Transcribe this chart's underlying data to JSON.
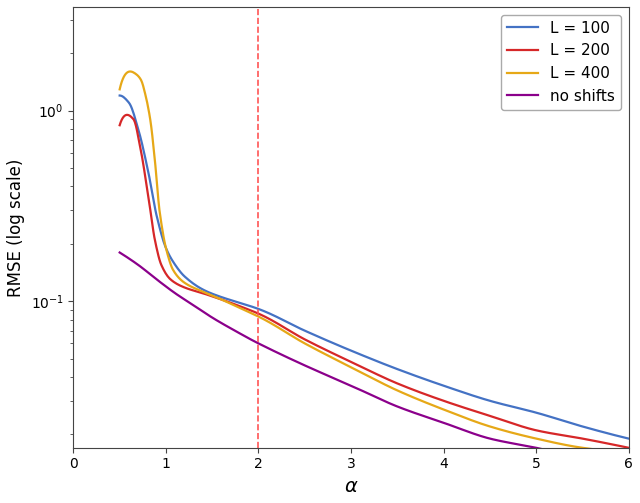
{
  "title": "",
  "xlabel": "α",
  "ylabel": "RMSE (log scale)",
  "xlim": [
    0,
    6
  ],
  "ylim": [
    0.017,
    3.5
  ],
  "xticks": [
    0,
    1,
    2,
    3,
    4,
    5,
    6
  ],
  "vline_x": 2.0,
  "vline_color": "#ff5555",
  "colors": {
    "L100": "#4472c4",
    "L200": "#d62728",
    "L400": "#e6a817",
    "no_shifts": "#8b008b"
  },
  "legend_labels": [
    "L = 100",
    "L = 200",
    "L = 400",
    "no shifts"
  ],
  "line_width": 1.6
}
